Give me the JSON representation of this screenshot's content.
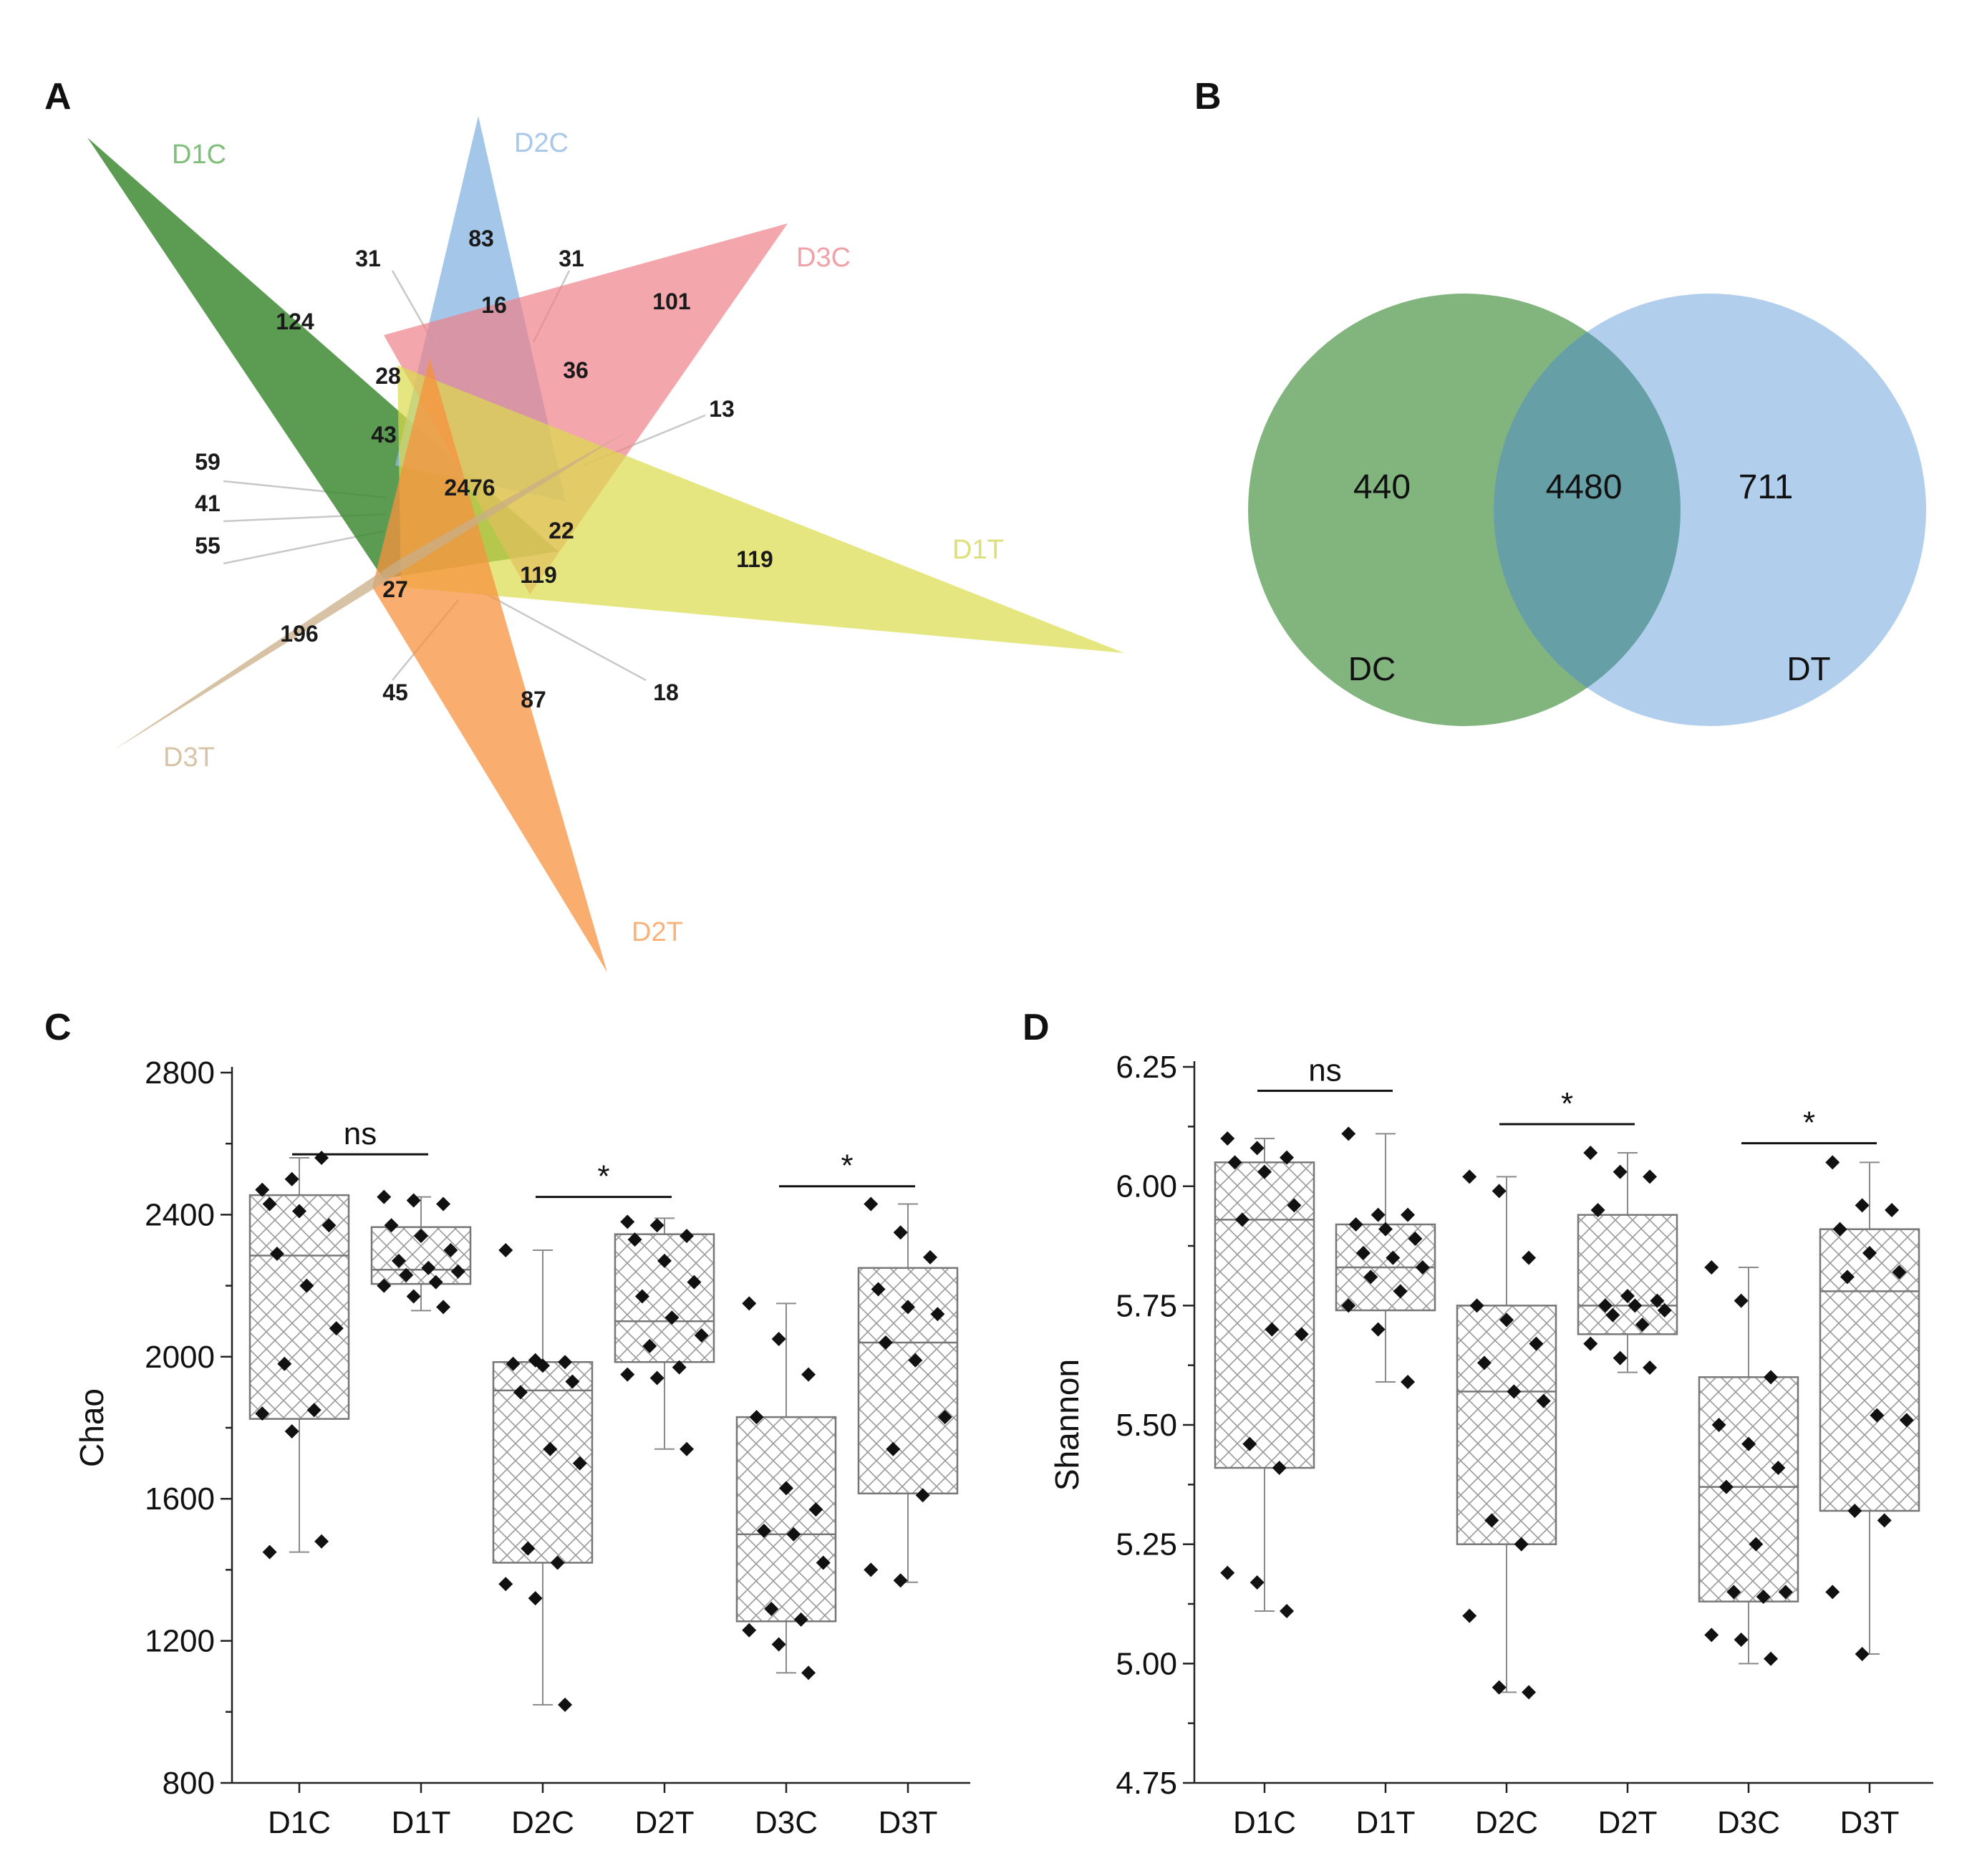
{
  "panels": {
    "A": {
      "label": "A",
      "sets": [
        {
          "name": "D1C",
          "color": "#3e8a34"
        },
        {
          "name": "D2C",
          "color": "#8db9e3"
        },
        {
          "name": "D3C",
          "color": "#ee8088"
        },
        {
          "name": "D1T",
          "color": "#dbdb4c"
        },
        {
          "name": "D2T",
          "color": "#f7923f"
        },
        {
          "name": "D3T",
          "color": "#c9ad87"
        }
      ],
      "region_counts": [
        {
          "id": "d1c-only",
          "value": "124"
        },
        {
          "id": "d2c-only",
          "value": "83"
        },
        {
          "id": "d3c-only",
          "value": "101"
        },
        {
          "id": "d1t-only",
          "value": "119"
        },
        {
          "id": "d2t-only",
          "value": "87"
        },
        {
          "id": "d3t-only",
          "value": "196"
        },
        {
          "id": "core",
          "value": "2476"
        },
        {
          "id": "r16",
          "value": "16"
        },
        {
          "id": "r28",
          "value": "28"
        },
        {
          "id": "r36",
          "value": "36"
        },
        {
          "id": "r43",
          "value": "43"
        },
        {
          "id": "r22",
          "value": "22"
        },
        {
          "id": "r119b",
          "value": "119"
        },
        {
          "id": "r27",
          "value": "27"
        },
        {
          "id": "c31a",
          "value": "31"
        },
        {
          "id": "c31b",
          "value": "31"
        },
        {
          "id": "c13",
          "value": "13"
        },
        {
          "id": "c59",
          "value": "59"
        },
        {
          "id": "c41",
          "value": "41"
        },
        {
          "id": "c55",
          "value": "55"
        },
        {
          "id": "c45",
          "value": "45"
        },
        {
          "id": "c18",
          "value": "18"
        }
      ]
    },
    "B": {
      "label": "B",
      "sets": [
        {
          "name": "DC",
          "color": "#5fa05a",
          "only": "440"
        },
        {
          "name": "DT",
          "color": "#a4c6ea",
          "only": "711"
        }
      ],
      "intersection": "4480",
      "overlap_color": "#679fa6"
    },
    "C": {
      "label": "C"
    },
    "D": {
      "label": "D"
    }
  },
  "chart_data": [
    {
      "panel": "C",
      "type": "box",
      "ylabel": "Chao",
      "ylim": [
        800,
        2800
      ],
      "yticks": [
        "800",
        "1200",
        "1600",
        "2000",
        "2400",
        "2800"
      ],
      "categories": [
        "D1C",
        "D1T",
        "D2C",
        "D2T",
        "D3C",
        "D3T"
      ],
      "boxes": [
        {
          "q1": 1825,
          "median": 2285,
          "q3": 2455,
          "whisker_low": 1450,
          "whisker_high": 2560
        },
        {
          "q1": 2205,
          "median": 2245,
          "q3": 2365,
          "whisker_low": 2130,
          "whisker_high": 2450
        },
        {
          "q1": 1420,
          "median": 1905,
          "q3": 1985,
          "whisker_low": 1020,
          "whisker_high": 2300
        },
        {
          "q1": 1985,
          "median": 2100,
          "q3": 2345,
          "whisker_low": 1740,
          "whisker_high": 2390
        },
        {
          "q1": 1255,
          "median": 1500,
          "q3": 1830,
          "whisker_low": 1110,
          "whisker_high": 2150
        },
        {
          "q1": 1615,
          "median": 2040,
          "q3": 2250,
          "whisker_low": 1365,
          "whisker_high": 2430
        }
      ],
      "points": [
        [
          2470,
          2500,
          2560,
          2430,
          2410,
          2370,
          2290,
          2200,
          2080,
          1980,
          1850,
          1840,
          1790,
          1480,
          1450
        ],
        [
          2450,
          2440,
          2430,
          2370,
          2340,
          2300,
          2270,
          2250,
          2240,
          2230,
          2210,
          2200,
          2170,
          2140
        ],
        [
          2300,
          1990,
          1985,
          1980,
          1975,
          1930,
          1900,
          1740,
          1700,
          1460,
          1420,
          1360,
          1320,
          1020
        ],
        [
          2380,
          2370,
          2340,
          2330,
          2270,
          2210,
          2170,
          2110,
          2060,
          2030,
          1970,
          1950,
          1940,
          1740
        ],
        [
          2150,
          2050,
          1950,
          1830,
          1630,
          1570,
          1510,
          1500,
          1420,
          1290,
          1260,
          1230,
          1190,
          1110
        ],
        [
          2430,
          2350,
          2280,
          2190,
          2140,
          2120,
          2040,
          1990,
          1830,
          1740,
          1610,
          1400,
          1370
        ]
      ],
      "significance": [
        {
          "pair": [
            0,
            1
          ],
          "label": "ns",
          "y": 2570
        },
        {
          "pair": [
            2,
            3
          ],
          "label": "*",
          "y": 2450
        },
        {
          "pair": [
            4,
            5
          ],
          "label": "*",
          "y": 2480
        }
      ]
    },
    {
      "panel": "D",
      "type": "box",
      "ylabel": "Shannon",
      "ylim": [
        4.75,
        6.25
      ],
      "yticks": [
        "4.75",
        "5.00",
        "5.25",
        "5.50",
        "5.75",
        "6.00",
        "6.25"
      ],
      "categories": [
        "D1C",
        "D1T",
        "D2C",
        "D2T",
        "D3C",
        "D3T"
      ],
      "boxes": [
        {
          "q1": 5.41,
          "median": 5.93,
          "q3": 6.05,
          "whisker_low": 5.11,
          "whisker_high": 6.1
        },
        {
          "q1": 5.74,
          "median": 5.83,
          "q3": 5.92,
          "whisker_low": 5.59,
          "whisker_high": 6.11
        },
        {
          "q1": 5.25,
          "median": 5.57,
          "q3": 5.75,
          "whisker_low": 4.94,
          "whisker_high": 6.02
        },
        {
          "q1": 5.69,
          "median": 5.75,
          "q3": 5.94,
          "whisker_low": 5.61,
          "whisker_high": 6.07
        },
        {
          "q1": 5.13,
          "median": 5.37,
          "q3": 5.6,
          "whisker_low": 5.0,
          "whisker_high": 5.83
        },
        {
          "q1": 5.32,
          "median": 5.78,
          "q3": 5.91,
          "whisker_low": 5.02,
          "whisker_high": 6.05
        }
      ],
      "points": [
        [
          6.1,
          6.08,
          6.06,
          6.05,
          6.03,
          5.96,
          5.93,
          5.7,
          5.69,
          5.46,
          5.41,
          5.19,
          5.17,
          5.11
        ],
        [
          6.11,
          5.94,
          5.94,
          5.92,
          5.91,
          5.89,
          5.86,
          5.85,
          5.83,
          5.81,
          5.78,
          5.75,
          5.7,
          5.59
        ],
        [
          6.02,
          5.99,
          5.85,
          5.75,
          5.72,
          5.67,
          5.63,
          5.57,
          5.55,
          5.3,
          5.25,
          5.1,
          4.95,
          4.94
        ],
        [
          6.07,
          6.03,
          6.02,
          5.95,
          5.77,
          5.76,
          5.75,
          5.75,
          5.74,
          5.73,
          5.71,
          5.67,
          5.64,
          5.62
        ],
        [
          5.83,
          5.76,
          5.6,
          5.5,
          5.46,
          5.41,
          5.37,
          5.25,
          5.15,
          5.15,
          5.14,
          5.06,
          5.05,
          5.01
        ],
        [
          6.05,
          5.96,
          5.95,
          5.91,
          5.86,
          5.82,
          5.81,
          5.52,
          5.51,
          5.32,
          5.3,
          5.15,
          5.02
        ]
      ],
      "significance": [
        {
          "pair": [
            0,
            1
          ],
          "label": "ns",
          "y": 6.2
        },
        {
          "pair": [
            2,
            3
          ],
          "label": "*",
          "y": 6.13
        },
        {
          "pair": [
            4,
            5
          ],
          "label": "*",
          "y": 6.09
        }
      ]
    }
  ]
}
